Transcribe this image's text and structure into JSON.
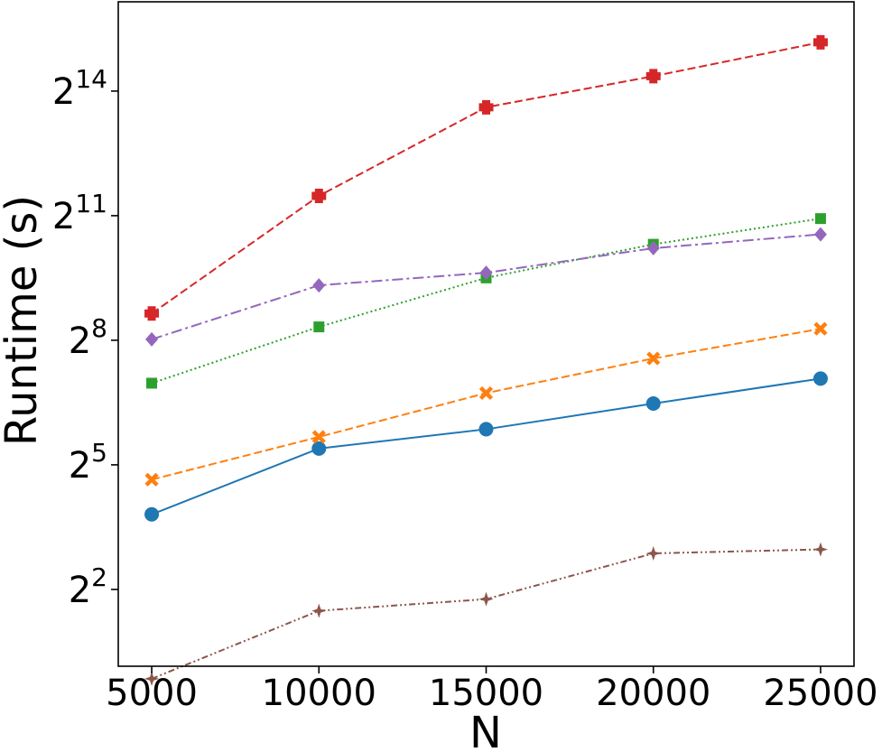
{
  "chart_data": {
    "type": "line",
    "xlabel": "N",
    "ylabel": "Runtime (s)",
    "x": [
      5000,
      10000,
      15000,
      20000,
      25000
    ],
    "xlim": [
      4000,
      26000
    ],
    "ylog_base": 2,
    "ylim_log2": [
      0.15,
      16.15
    ],
    "x_ticks": [
      5000,
      10000,
      15000,
      20000,
      25000
    ],
    "x_tick_labels": [
      "5000",
      "10000",
      "15000",
      "20000",
      "25000"
    ],
    "y_ticks_log2": [
      2,
      5,
      8,
      11,
      14
    ],
    "y_tick_labels": [
      {
        "base": "2",
        "exp": "2"
      },
      {
        "base": "2",
        "exp": "5"
      },
      {
        "base": "2",
        "exp": "8"
      },
      {
        "base": "2",
        "exp": "11"
      },
      {
        "base": "2",
        "exp": "14"
      }
    ],
    "grid": false,
    "series": [
      {
        "color": "#1f77b4",
        "linestyle": "solid",
        "marker": "circle",
        "values": [
          14,
          42,
          58,
          89,
          135
        ]
      },
      {
        "color": "#ff7f0e",
        "linestyle": "dashed",
        "marker": "x",
        "values": [
          25,
          51,
          106,
          189,
          310
        ]
      },
      {
        "color": "#2ca02c",
        "linestyle": "dotted",
        "marker": "square",
        "values": [
          125,
          320,
          725,
          1270,
          1950
        ]
      },
      {
        "color": "#d62728",
        "linestyle": "dashed",
        "marker": "plus",
        "values": [
          400,
          2850,
          12500,
          21000,
          37000
        ]
      },
      {
        "color": "#9467bd",
        "linestyle": "dashdot",
        "marker": "diamond",
        "values": [
          260,
          640,
          790,
          1190,
          1500
        ]
      },
      {
        "color": "#8c564b",
        "linestyle": "dashdotdot",
        "marker": "star4",
        "values": [
          0.9,
          2.8,
          3.4,
          7.3,
          7.8
        ]
      }
    ]
  }
}
